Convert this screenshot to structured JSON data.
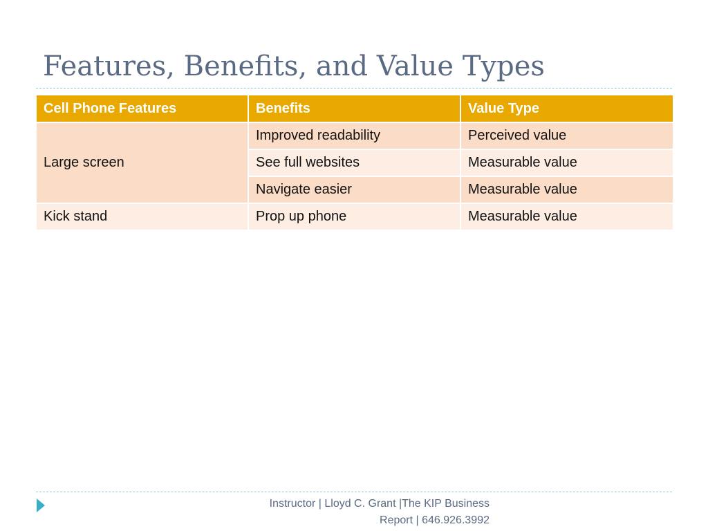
{
  "slide": {
    "title": "Features, Benefits, and Value Types"
  },
  "table": {
    "headers": [
      "Cell Phone Features",
      "Benefits",
      "Value Type"
    ],
    "groups": [
      {
        "feature": "Large screen",
        "rows": [
          {
            "benefit": "Improved readability",
            "value_type": "Perceived value"
          },
          {
            "benefit": "See full websites",
            "value_type": "Measurable value"
          },
          {
            "benefit": "Navigate easier",
            "value_type": "Measurable value"
          }
        ]
      },
      {
        "feature": "Kick stand",
        "rows": [
          {
            "benefit": "Prop up phone",
            "value_type": "Measurable value"
          }
        ]
      }
    ]
  },
  "footer": {
    "line1": "Instructor | Lloyd C. Grant |The KIP Business",
    "line2": "Report | 646.926.3992"
  },
  "colors": {
    "title": "#5a6a82",
    "header_fill": "#e9a800",
    "band_dark": "#fbdcc6",
    "band_light": "#fdede3",
    "rule": "#8fc4d2",
    "arrow": "#3aaec8"
  },
  "icons": {
    "footer_marker": "triangle-right-icon"
  }
}
